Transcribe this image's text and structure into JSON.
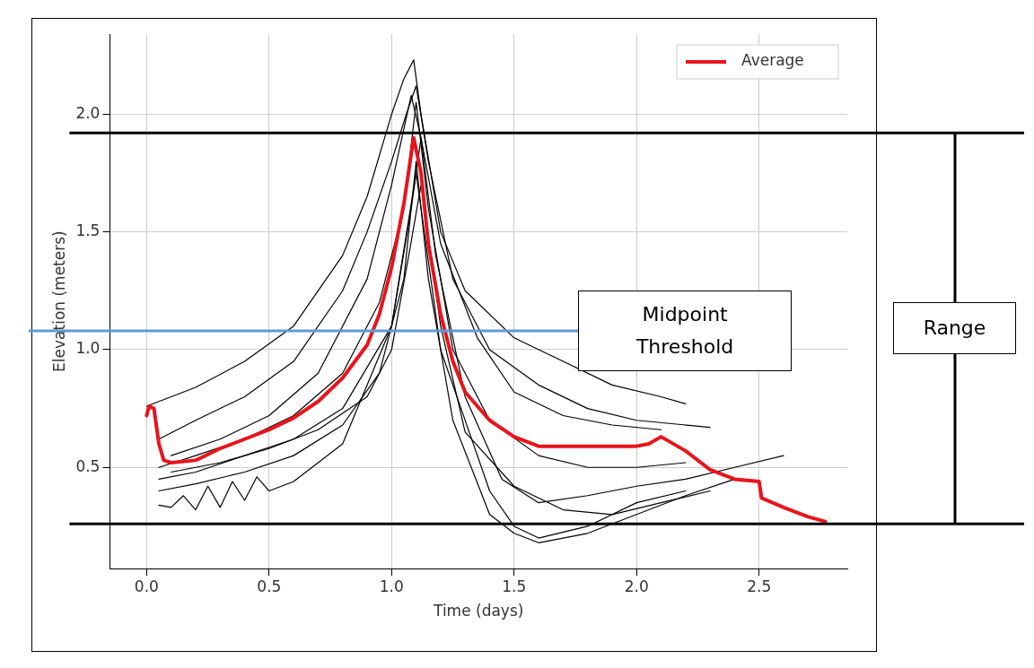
{
  "chart_data": {
    "type": "line",
    "xlabel": "Time (days)",
    "ylabel": "Elevation (meters)",
    "xlim": [
      -0.15,
      2.86
    ],
    "ylim": [
      0.07,
      2.34
    ],
    "xticks": [
      {
        "value": 0,
        "label": "0.0"
      },
      0.5,
      {
        "value": 1,
        "label": "1.0"
      },
      1.5,
      {
        "value": 2,
        "label": "2.0"
      },
      2.5
    ],
    "yticks": [
      0.5,
      {
        "value": 1,
        "label": "1.0"
      },
      1.5,
      {
        "value": 2,
        "label": "2.0"
      }
    ],
    "grid": true,
    "legend": "top right",
    "marker": "none",
    "line_style": "solid",
    "series": [
      {
        "color": "#000000",
        "x": [
          0.0,
          0.2,
          0.4,
          0.6,
          0.8,
          0.9,
          1.0,
          1.05,
          1.09,
          1.12,
          1.2,
          1.3,
          1.5,
          1.7,
          1.9,
          2.1,
          2.2
        ],
        "values": [
          0.76,
          0.84,
          0.95,
          1.1,
          1.4,
          1.65,
          2.0,
          2.15,
          2.23,
          2.0,
          1.5,
          1.25,
          1.05,
          0.95,
          0.85,
          0.8,
          0.77
        ]
      },
      {
        "color": "#000000",
        "x": [
          0.05,
          0.2,
          0.4,
          0.6,
          0.8,
          0.9,
          1.0,
          1.06,
          1.1,
          1.15,
          1.25,
          1.4,
          1.6,
          1.8,
          2.0,
          2.3
        ],
        "values": [
          0.62,
          0.7,
          0.8,
          0.95,
          1.25,
          1.5,
          1.8,
          2.0,
          2.12,
          1.8,
          1.3,
          1.0,
          0.85,
          0.75,
          0.7,
          0.67
        ]
      },
      {
        "color": "#000000",
        "x": [
          0.05,
          0.2,
          0.4,
          0.6,
          0.8,
          0.95,
          1.05,
          1.1,
          1.15,
          1.25,
          1.4,
          1.6,
          1.8,
          2.0,
          2.2
        ],
        "values": [
          0.5,
          0.55,
          0.62,
          0.72,
          0.9,
          1.2,
          1.6,
          2.05,
          1.6,
          1.0,
          0.7,
          0.55,
          0.5,
          0.5,
          0.52
        ]
      },
      {
        "color": "#000000",
        "x": [
          0.05,
          0.2,
          0.4,
          0.6,
          0.8,
          1.0,
          1.08,
          1.12,
          1.18,
          1.3,
          1.45,
          1.6,
          1.8,
          2.0,
          2.2,
          2.4,
          2.6
        ],
        "values": [
          0.45,
          0.48,
          0.55,
          0.62,
          0.75,
          1.1,
          1.6,
          1.9,
          1.4,
          0.8,
          0.45,
          0.35,
          0.38,
          0.42,
          0.45,
          0.5,
          0.55
        ]
      },
      {
        "color": "#000000",
        "x": [
          0.05,
          0.2,
          0.4,
          0.6,
          0.8,
          0.95,
          1.05,
          1.1,
          1.15,
          1.25,
          1.4,
          1.5,
          1.6,
          1.8,
          2.0,
          2.2,
          2.4
        ],
        "values": [
          0.4,
          0.43,
          0.48,
          0.55,
          0.68,
          0.9,
          1.3,
          1.8,
          1.3,
          0.7,
          0.3,
          0.22,
          0.18,
          0.22,
          0.3,
          0.38,
          0.45
        ]
      },
      {
        "color": "#000000",
        "x": [
          0.05,
          0.1,
          0.15,
          0.2,
          0.25,
          0.3,
          0.35,
          0.4,
          0.45,
          0.5,
          0.6,
          0.8,
          1.0,
          1.1,
          1.2,
          1.4,
          1.5,
          1.6,
          1.8,
          2.0,
          2.2
        ],
        "values": [
          0.34,
          0.33,
          0.38,
          0.32,
          0.42,
          0.33,
          0.44,
          0.36,
          0.46,
          0.4,
          0.44,
          0.6,
          1.1,
          1.75,
          1.0,
          0.4,
          0.25,
          0.2,
          0.25,
          0.35,
          0.4
        ]
      },
      {
        "color": "#000000",
        "x": [
          0.1,
          0.3,
          0.5,
          0.7,
          0.9,
          1.0,
          1.08,
          1.12,
          1.2,
          1.35,
          1.5,
          1.7,
          1.9,
          2.1
        ],
        "values": [
          0.55,
          0.62,
          0.72,
          0.9,
          1.3,
          1.7,
          2.08,
          1.9,
          1.45,
          1.05,
          0.82,
          0.72,
          0.68,
          0.66
        ]
      },
      {
        "color": "#000000",
        "x": [
          0.1,
          0.3,
          0.5,
          0.7,
          0.9,
          1.0,
          1.07,
          1.12,
          1.2,
          1.3,
          1.5,
          1.7,
          1.9,
          2.1,
          2.3
        ],
        "values": [
          0.48,
          0.52,
          0.58,
          0.66,
          0.8,
          1.0,
          1.4,
          1.7,
          1.1,
          0.65,
          0.42,
          0.32,
          0.3,
          0.35,
          0.4
        ]
      },
      {
        "name": "Average",
        "color": "#e8141c",
        "x": [
          0.0,
          0.01,
          0.03,
          0.05,
          0.07,
          0.1,
          0.2,
          0.3,
          0.4,
          0.5,
          0.6,
          0.7,
          0.8,
          0.9,
          0.95,
          1.0,
          1.05,
          1.09,
          1.12,
          1.15,
          1.2,
          1.25,
          1.3,
          1.4,
          1.5,
          1.6,
          1.8,
          2.0,
          2.05,
          2.1,
          2.2,
          2.3,
          2.4,
          2.5,
          2.51,
          2.6,
          2.7,
          2.77
        ],
        "values": [
          0.72,
          0.76,
          0.75,
          0.6,
          0.53,
          0.52,
          0.53,
          0.58,
          0.62,
          0.66,
          0.71,
          0.78,
          0.88,
          1.02,
          1.15,
          1.35,
          1.62,
          1.9,
          1.75,
          1.45,
          1.15,
          0.95,
          0.82,
          0.7,
          0.63,
          0.59,
          0.59,
          0.59,
          0.6,
          0.63,
          0.57,
          0.49,
          0.45,
          0.44,
          0.37,
          0.33,
          0.29,
          0.27
        ]
      }
    ],
    "ref_lines": [
      {
        "axis": "y",
        "value": 1.92,
        "color": "#000000"
      },
      {
        "axis": "y",
        "value": 0.26,
        "color": "#000000"
      },
      {
        "axis": "y",
        "value": 1.08,
        "label": "Midpoint Threshold",
        "color": "#5b9bd5"
      }
    ],
    "annotations": [
      "Range"
    ]
  }
}
